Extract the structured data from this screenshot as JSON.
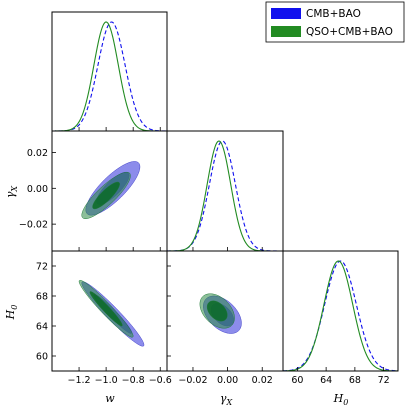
{
  "chart_data": {
    "type": "triangle",
    "legend": {
      "placement": "top-right",
      "entries": [
        {
          "label": "CMB+BAO",
          "color": "#1010ee"
        },
        {
          "label": "QSO+CMB+BAO",
          "color": "#228b22"
        }
      ]
    },
    "series": [
      {
        "name": "CMB+BAO",
        "color": "#1010ee",
        "fill": "#7878e8",
        "line_style": "dashed"
      },
      {
        "name": "QSO+CMB+BAO",
        "color": "#228b22",
        "fill": "#2e8b45",
        "line_style": "solid"
      }
    ],
    "parameters": [
      {
        "key": "w",
        "label": "w",
        "range": [
          -1.4,
          -0.55
        ],
        "ticks": [
          -1.2,
          -1.0,
          -0.8,
          -0.6
        ],
        "tick_labels": [
          "−1.2",
          "−1.0",
          "−0.8",
          "−0.6"
        ]
      },
      {
        "key": "gx",
        "label": "γX",
        "label_main": "γ",
        "label_sub": "X",
        "range": [
          -0.035,
          0.032
        ],
        "ticks": [
          -0.02,
          0.0,
          0.02
        ],
        "tick_labels": [
          "−0.02",
          "0.00",
          "0.02"
        ]
      },
      {
        "key": "h0",
        "label": "H0",
        "label_main": "H",
        "label_sub": "0",
        "range": [
          58,
          74
        ],
        "ticks": [
          60,
          64,
          68,
          72
        ],
        "tick_labels": [
          "60",
          "64",
          "68",
          "72"
        ]
      }
    ],
    "marginals": [
      {
        "param": "w",
        "curves": [
          {
            "series": "CMB+BAO",
            "mean": -0.96,
            "sigma": 0.1
          },
          {
            "series": "QSO+CMB+BAO",
            "mean": -1.0,
            "sigma": 0.09
          }
        ]
      },
      {
        "param": "gx",
        "curves": [
          {
            "series": "CMB+BAO",
            "mean": -0.003,
            "sigma": 0.0075
          },
          {
            "series": "QSO+CMB+BAO",
            "mean": -0.005,
            "sigma": 0.0068
          }
        ]
      },
      {
        "param": "h0",
        "curves": [
          {
            "series": "CMB+BAO",
            "mean": 66.0,
            "sigma": 2.2
          },
          {
            "series": "QSO+CMB+BAO",
            "mean": 65.7,
            "sigma": 2.0
          }
        ]
      }
    ],
    "contours_2d": [
      {
        "x": "w",
        "y": "gx",
        "ellipses": [
          {
            "series": "CMB+BAO",
            "level": "95%",
            "center": [
              -0.95,
              0.0
            ],
            "sigma": [
              0.2,
              0.015
            ],
            "corr": 0.8
          },
          {
            "series": "CMB+BAO",
            "level": "68%",
            "center": [
              -0.95,
              0.0
            ],
            "sigma": [
              0.12,
              0.009
            ],
            "corr": 0.8
          },
          {
            "series": "QSO+CMB+BAO",
            "level": "95%",
            "center": [
              -1.0,
              -0.004
            ],
            "sigma": [
              0.18,
              0.013
            ],
            "corr": 0.85
          },
          {
            "series": "QSO+CMB+BAO",
            "level": "68%",
            "center": [
              -1.0,
              -0.004
            ],
            "sigma": [
              0.1,
              0.0075
            ],
            "corr": 0.85
          }
        ]
      },
      {
        "x": "w",
        "y": "h0",
        "ellipses": [
          {
            "series": "CMB+BAO",
            "level": "95%",
            "center": [
              -0.95,
              65.6
            ],
            "sigma": [
              0.23,
              4.3
            ],
            "corr": -0.96
          },
          {
            "series": "CMB+BAO",
            "level": "68%",
            "center": [
              -0.95,
              65.6
            ],
            "sigma": [
              0.14,
              2.6
            ],
            "corr": -0.96
          },
          {
            "series": "QSO+CMB+BAO",
            "level": "95%",
            "center": [
              -1.0,
              66.3
            ],
            "sigma": [
              0.2,
              3.8
            ],
            "corr": -0.96
          },
          {
            "series": "QSO+CMB+BAO",
            "level": "68%",
            "center": [
              -1.0,
              66.3
            ],
            "sigma": [
              0.12,
              2.3
            ],
            "corr": -0.96
          }
        ]
      },
      {
        "x": "gx",
        "y": "h0",
        "ellipses": [
          {
            "series": "CMB+BAO",
            "level": "95%",
            "center": [
              -0.003,
              65.5
            ],
            "sigma": [
              0.011,
              2.5
            ],
            "corr": -0.45
          },
          {
            "series": "CMB+BAO",
            "level": "68%",
            "center": [
              -0.003,
              65.5
            ],
            "sigma": [
              0.0065,
              1.5
            ],
            "corr": -0.45
          },
          {
            "series": "QSO+CMB+BAO",
            "level": "95%",
            "center": [
              -0.006,
              66.0
            ],
            "sigma": [
              0.01,
              2.3
            ],
            "corr": -0.4
          },
          {
            "series": "QSO+CMB+BAO",
            "level": "68%",
            "center": [
              -0.006,
              66.0
            ],
            "sigma": [
              0.0058,
              1.35
            ],
            "corr": -0.4
          }
        ]
      }
    ]
  }
}
